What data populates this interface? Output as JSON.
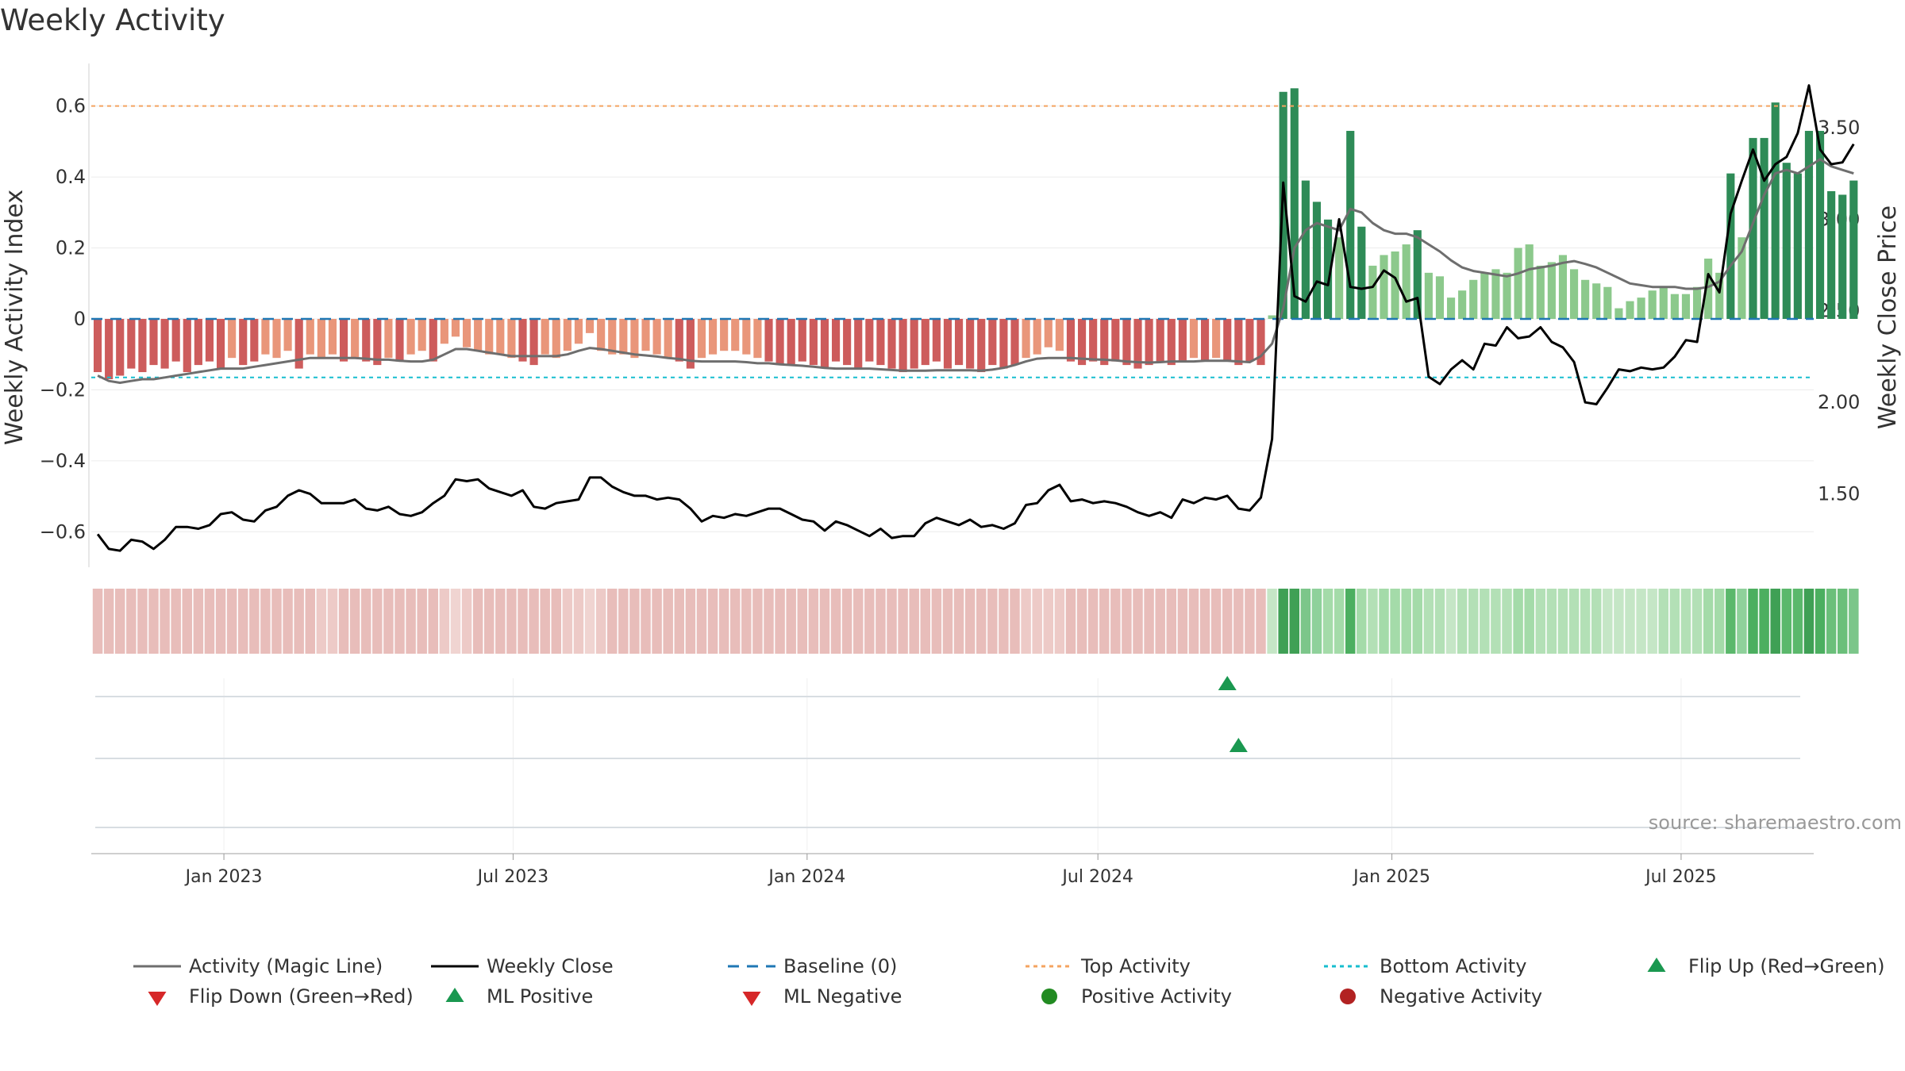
{
  "chart_data": {
    "type": "bar",
    "title": "Weekly Activity",
    "ylabel": "Weekly Activity Index",
    "y2label": "Weekly Close Price",
    "ylim": [
      -0.7,
      0.72
    ],
    "y2lim": [
      1.1,
      3.85
    ],
    "yticks": [
      {
        "v": 0.6,
        "t": "0.6"
      },
      {
        "v": 0.4,
        "t": "0.4"
      },
      {
        "v": 0.2,
        "t": "0.2"
      },
      {
        "v": 0,
        "t": "0"
      },
      {
        "v": -0.2,
        "t": "−0.2"
      },
      {
        "v": -0.4,
        "t": "−0.4"
      },
      {
        "v": -0.6,
        "t": "−0.6"
      }
    ],
    "y2ticks": [
      {
        "v": 3.5,
        "t": "3.50"
      },
      {
        "v": 3.0,
        "t": "3.00"
      },
      {
        "v": 2.5,
        "t": "2.50"
      },
      {
        "v": 2.0,
        "t": "2.00"
      },
      {
        "v": 1.5,
        "t": "1.50"
      }
    ],
    "x_start": "2022-10-10",
    "x_end": "2025-09-22",
    "xticks": [
      {
        "date": "2023-01-01",
        "t": "Jan 2023"
      },
      {
        "date": "2023-07-01",
        "t": "Jul 2023"
      },
      {
        "date": "2024-01-01",
        "t": "Jan 2024"
      },
      {
        "date": "2024-07-01",
        "t": "Jul 2024"
      },
      {
        "date": "2025-01-01",
        "t": "Jan 2025"
      },
      {
        "date": "2025-07-01",
        "t": "Jul 2025"
      }
    ],
    "top_activity": 0.6,
    "bottom_activity": -0.165,
    "baseline": 0,
    "first_week": "2022-10-14",
    "activity": [
      -0.15,
      -0.17,
      -0.16,
      -0.14,
      -0.15,
      -0.13,
      -0.14,
      -0.12,
      -0.15,
      -0.13,
      -0.12,
      -0.14,
      -0.11,
      -0.13,
      -0.12,
      -0.1,
      -0.11,
      -0.09,
      -0.14,
      -0.1,
      -0.11,
      -0.1,
      -0.12,
      -0.11,
      -0.12,
      -0.13,
      -0.11,
      -0.12,
      -0.1,
      -0.09,
      -0.12,
      -0.07,
      -0.05,
      -0.08,
      -0.09,
      -0.1,
      -0.1,
      -0.11,
      -0.12,
      -0.13,
      -0.1,
      -0.11,
      -0.09,
      -0.07,
      -0.04,
      -0.09,
      -0.1,
      -0.1,
      -0.11,
      -0.09,
      -0.1,
      -0.11,
      -0.12,
      -0.14,
      -0.11,
      -0.1,
      -0.09,
      -0.09,
      -0.1,
      -0.11,
      -0.12,
      -0.13,
      -0.13,
      -0.12,
      -0.13,
      -0.14,
      -0.12,
      -0.13,
      -0.14,
      -0.12,
      -0.13,
      -0.14,
      -0.15,
      -0.14,
      -0.13,
      -0.12,
      -0.14,
      -0.13,
      -0.14,
      -0.15,
      -0.13,
      -0.14,
      -0.13,
      -0.11,
      -0.1,
      -0.08,
      -0.09,
      -0.12,
      -0.13,
      -0.12,
      -0.13,
      -0.12,
      -0.13,
      -0.14,
      -0.13,
      -0.12,
      -0.13,
      -0.12,
      -0.11,
      -0.12,
      -0.11,
      -0.12,
      -0.13,
      -0.12,
      -0.13,
      0.01,
      0.64,
      0.65,
      0.39,
      0.33,
      0.28,
      0.23,
      0.53,
      0.26,
      0.15,
      0.18,
      0.19,
      0.21,
      0.25,
      0.13,
      0.12,
      0.06,
      0.08,
      0.11,
      0.13,
      0.14,
      0.13,
      0.2,
      0.21,
      0.15,
      0.16,
      0.18,
      0.14,
      0.11,
      0.1,
      0.09,
      0.03,
      0.05,
      0.06,
      0.08,
      0.09,
      0.07,
      0.07,
      0.09,
      0.17,
      0.13,
      0.41,
      0.23,
      0.51,
      0.51,
      0.61,
      0.44,
      0.41,
      0.53,
      0.53,
      0.36,
      0.35,
      0.39
    ],
    "magic_line": [
      -0.16,
      -0.175,
      -0.18,
      -0.175,
      -0.17,
      -0.17,
      -0.165,
      -0.16,
      -0.155,
      -0.15,
      -0.145,
      -0.14,
      -0.14,
      -0.14,
      -0.135,
      -0.13,
      -0.125,
      -0.12,
      -0.115,
      -0.11,
      -0.11,
      -0.11,
      -0.11,
      -0.11,
      -0.112,
      -0.115,
      -0.115,
      -0.118,
      -0.12,
      -0.12,
      -0.115,
      -0.1,
      -0.085,
      -0.085,
      -0.09,
      -0.095,
      -0.1,
      -0.105,
      -0.105,
      -0.105,
      -0.105,
      -0.105,
      -0.1,
      -0.09,
      -0.082,
      -0.085,
      -0.09,
      -0.095,
      -0.1,
      -0.103,
      -0.106,
      -0.11,
      -0.113,
      -0.118,
      -0.12,
      -0.12,
      -0.12,
      -0.12,
      -0.122,
      -0.125,
      -0.125,
      -0.128,
      -0.13,
      -0.132,
      -0.135,
      -0.138,
      -0.14,
      -0.14,
      -0.14,
      -0.14,
      -0.142,
      -0.144,
      -0.146,
      -0.146,
      -0.146,
      -0.145,
      -0.145,
      -0.145,
      -0.145,
      -0.146,
      -0.143,
      -0.138,
      -0.13,
      -0.12,
      -0.112,
      -0.11,
      -0.11,
      -0.11,
      -0.112,
      -0.114,
      -0.115,
      -0.117,
      -0.12,
      -0.122,
      -0.123,
      -0.122,
      -0.12,
      -0.12,
      -0.12,
      -0.118,
      -0.118,
      -0.118,
      -0.12,
      -0.122,
      -0.105,
      -0.07,
      0.03,
      0.2,
      0.25,
      0.27,
      0.26,
      0.25,
      0.31,
      0.3,
      0.27,
      0.25,
      0.24,
      0.24,
      0.23,
      0.21,
      0.19,
      0.165,
      0.145,
      0.135,
      0.13,
      0.125,
      0.12,
      0.128,
      0.14,
      0.145,
      0.15,
      0.158,
      0.163,
      0.155,
      0.145,
      0.13,
      0.115,
      0.1,
      0.095,
      0.09,
      0.09,
      0.09,
      0.085,
      0.085,
      0.09,
      0.105,
      0.15,
      0.19,
      0.27,
      0.35,
      0.41,
      0.42,
      0.41,
      0.43,
      0.45,
      0.43,
      0.42,
      0.41
    ],
    "weekly_close": [
      1.28,
      1.2,
      1.19,
      1.25,
      1.24,
      1.2,
      1.25,
      1.32,
      1.32,
      1.31,
      1.33,
      1.39,
      1.4,
      1.36,
      1.35,
      1.41,
      1.43,
      1.49,
      1.52,
      1.5,
      1.45,
      1.45,
      1.45,
      1.47,
      1.42,
      1.41,
      1.43,
      1.39,
      1.38,
      1.4,
      1.45,
      1.49,
      1.58,
      1.57,
      1.58,
      1.53,
      1.51,
      1.49,
      1.52,
      1.43,
      1.42,
      1.45,
      1.46,
      1.47,
      1.59,
      1.59,
      1.54,
      1.51,
      1.49,
      1.49,
      1.47,
      1.48,
      1.47,
      1.42,
      1.35,
      1.38,
      1.37,
      1.39,
      1.38,
      1.4,
      1.42,
      1.42,
      1.39,
      1.36,
      1.35,
      1.3,
      1.35,
      1.33,
      1.3,
      1.27,
      1.31,
      1.26,
      1.27,
      1.27,
      1.34,
      1.37,
      1.35,
      1.33,
      1.36,
      1.32,
      1.33,
      1.31,
      1.34,
      1.44,
      1.45,
      1.52,
      1.55,
      1.46,
      1.47,
      1.45,
      1.46,
      1.45,
      1.43,
      1.4,
      1.38,
      1.4,
      1.37,
      1.47,
      1.45,
      1.48,
      1.47,
      1.49,
      1.42,
      1.41,
      1.48,
      1.8,
      3.2,
      2.58,
      2.55,
      2.66,
      2.64,
      3.0,
      2.63,
      2.62,
      2.63,
      2.72,
      2.68,
      2.55,
      2.57,
      2.14,
      2.1,
      2.18,
      2.23,
      2.18,
      2.32,
      2.31,
      2.41,
      2.35,
      2.36,
      2.41,
      2.33,
      2.3,
      2.22,
      2.0,
      1.99,
      2.08,
      2.18,
      2.17,
      2.19,
      2.18,
      2.19,
      2.25,
      2.34,
      2.33,
      2.7,
      2.6,
      3.03,
      3.21,
      3.38,
      3.21,
      3.3,
      3.34,
      3.47,
      3.73,
      3.38,
      3.3,
      3.31,
      3.41
    ],
    "strip_colors": [
      "#e8bdba",
      "#e8bdba",
      "#e8bdba",
      "#e8bdba",
      "#e8bdba",
      "#e8bdba",
      "#e8bdba",
      "#e8bdba",
      "#e8bdba",
      "#e8bdba",
      "#e8bdba",
      "#e8bdba",
      "#e8bdba",
      "#e8bdba",
      "#e8bdba",
      "#e8bdba",
      "#e8bdba",
      "#e8bdba",
      "#e8bdba",
      "#e8bdba",
      "#edcac7",
      "#edcac7",
      "#e8bdba",
      "#e8bdba",
      "#e8bdba",
      "#e8bdba",
      "#e8bdba",
      "#e8bdba",
      "#e8bdba",
      "#e8bdba",
      "#e8bdba",
      "#edcac7",
      "#f0d4d1",
      "#edcac7",
      "#e8bdba",
      "#e8bdba",
      "#e8bdba",
      "#e8bdba",
      "#e8bdba",
      "#e8bdba",
      "#e8bdba",
      "#e8bdba",
      "#edcac7",
      "#edcac7",
      "#f0d4d1",
      "#edcac7",
      "#e8bdba",
      "#e8bdba",
      "#e8bdba",
      "#e8bdba",
      "#e8bdba",
      "#e8bdba",
      "#e8bdba",
      "#e8bdba",
      "#e8bdba",
      "#e8bdba",
      "#e8bdba",
      "#e8bdba",
      "#e8bdba",
      "#e8bdba",
      "#e8bdba",
      "#e8bdba",
      "#e8bdba",
      "#e8bdba",
      "#e8bdba",
      "#e8bdba",
      "#e8bdba",
      "#e8bdba",
      "#e8bdba",
      "#e8bdba",
      "#e8bdba",
      "#e8bdba",
      "#e8bdba",
      "#e8bdba",
      "#e8bdba",
      "#e8bdba",
      "#e8bdba",
      "#e8bdba",
      "#e8bdba",
      "#e8bdba",
      "#e8bdba",
      "#e8bdba",
      "#e8bdba",
      "#edcac7",
      "#edcac7",
      "#edcac7",
      "#edcac7",
      "#e8bdba",
      "#e8bdba",
      "#e8bdba",
      "#e8bdba",
      "#e8bdba",
      "#e8bdba",
      "#e8bdba",
      "#e8bdba",
      "#e8bdba",
      "#e8bdba",
      "#e8bdba",
      "#e8bdba",
      "#e8bdba",
      "#e8bdba",
      "#e8bdba",
      "#e8bdba",
      "#e8bdba",
      "#e8bdba",
      "#c5e6c6",
      "#3fa055",
      "#3fa055",
      "#7cc68a",
      "#8fd19b",
      "#a4dba9",
      "#a4dba9",
      "#4caf60",
      "#a4dba9",
      "#b3e0b6",
      "#a4dba9",
      "#a4dba9",
      "#a4dba9",
      "#a4dba9",
      "#b3e0b6",
      "#b3e0b6",
      "#c5e6c6",
      "#b3e0b6",
      "#b3e0b6",
      "#b3e0b6",
      "#b3e0b6",
      "#b3e0b6",
      "#a4dba9",
      "#a4dba9",
      "#b3e0b6",
      "#b3e0b6",
      "#b3e0b6",
      "#b3e0b6",
      "#b3e0b6",
      "#b3e0b6",
      "#c5e6c6",
      "#c5e6c6",
      "#c5e6c6",
      "#c5e6c6",
      "#c5e6c6",
      "#b3e0b6",
      "#b3e0b6",
      "#b3e0b6",
      "#b3e0b6",
      "#a4dba9",
      "#a4dba9",
      "#5bb86c",
      "#8fd19b",
      "#4caf60",
      "#4caf60",
      "#3fa055",
      "#5bb86c",
      "#5bb86c",
      "#3fa055",
      "#4caf60",
      "#6bbf7a",
      "#6bbf7a",
      "#7cc68a"
    ],
    "flip_up_dates": [
      "2024-09-20"
    ],
    "ml_positive_dates": [
      "2024-09-27"
    ],
    "legend": [
      {
        "label": "Activity (Magic Line)",
        "kind": "line",
        "color": "#6e6e6e",
        "dash": ""
      },
      {
        "label": "Weekly Close",
        "kind": "line",
        "color": "#000000",
        "dash": ""
      },
      {
        "label": "Baseline (0)",
        "kind": "line",
        "color": "#1f77b4",
        "dash": "14,10"
      },
      {
        "label": "Top Activity",
        "kind": "line",
        "color": "#f4a460",
        "dash": "5,5"
      },
      {
        "label": "Bottom Activity",
        "kind": "line",
        "color": "#17becf",
        "dash": "5,5"
      },
      {
        "label": "Flip Up (Red→Green)",
        "kind": "tri-up",
        "color": "#1a9850",
        "dash": ""
      },
      {
        "label": "Flip Down (Green→Red)",
        "kind": "tri-down",
        "color": "#d62728",
        "dash": ""
      },
      {
        "label": "ML Positive",
        "kind": "tri-up",
        "color": "#1a9850",
        "dash": ""
      },
      {
        "label": "ML Negative",
        "kind": "tri-down",
        "color": "#d62728",
        "dash": ""
      },
      {
        "label": "Positive Activity",
        "kind": "dot",
        "color": "#228b22",
        "dash": ""
      },
      {
        "label": "Negative Activity",
        "kind": "dot",
        "color": "#b22222",
        "dash": ""
      }
    ],
    "source": "source: sharemaestro.com",
    "colors": {
      "pos_strong": "#2e8b57",
      "pos_light": "#8cc98c",
      "neg_strong": "#cd5c5c",
      "neg_light": "#e9967a",
      "magic_line": "#6e6e6e",
      "close": "#000000",
      "baseline": "#1f77b4",
      "top": "#f4a460",
      "bottom": "#17becf",
      "marker": "#1a9850"
    }
  }
}
